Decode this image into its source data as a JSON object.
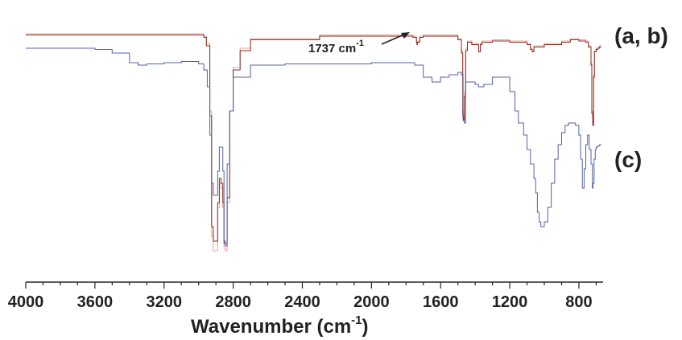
{
  "chart_data": {
    "type": "line",
    "xlabel_main": "Wavenumber (cm",
    "xlabel_sup": "-1",
    "xlabel_close": ")",
    "xlim": [
      4000,
      660
    ],
    "x_reversed": true,
    "ylim": [
      0,
      100
    ],
    "y_axis_shown": false,
    "x_ticks": [
      4000,
      3600,
      3200,
      2800,
      2400,
      2000,
      1600,
      1200,
      800
    ],
    "x_tick_labels": [
      "4000",
      "3600",
      "3200",
      "2800",
      "2400",
      "2000",
      "1600",
      "1200",
      "800"
    ],
    "curve_labels": {
      "ab": "(a, b)",
      "c": "(c)"
    },
    "annotation": {
      "text": "1737 cm",
      "sup": "-1",
      "target_x": 1737
    },
    "series": [
      {
        "key": "a",
        "color": "#e8a49c",
        "x": [
          4000,
          3400,
          3000,
          2970,
          2955,
          2935,
          2925,
          2915,
          2905,
          2890,
          2880,
          2870,
          2860,
          2853,
          2846,
          2835,
          2820,
          2800,
          2760,
          2700,
          2300,
          2000,
          1800,
          1760,
          1740,
          1737,
          1734,
          1720,
          1700,
          1600,
          1500,
          1480,
          1472,
          1466,
          1462,
          1455,
          1445,
          1420,
          1380,
          1370,
          1360,
          1300,
          1200,
          1100,
          1080,
          1070,
          1060,
          1000,
          900,
          850,
          800,
          760,
          745,
          730,
          725,
          720,
          715,
          710,
          700,
          690,
          680,
          670
        ],
        "y": [
          92,
          92,
          92,
          91,
          88,
          60,
          8,
          2,
          2,
          20,
          30,
          28,
          20,
          3,
          2,
          22,
          60,
          78,
          86,
          90,
          91.5,
          91.5,
          91.5,
          91,
          89,
          88,
          89,
          91,
          91.5,
          91.5,
          90,
          85,
          60,
          58,
          68,
          86,
          89,
          88,
          85,
          88,
          89,
          89.5,
          89,
          88,
          86,
          85,
          87,
          88,
          89,
          90,
          89.5,
          89,
          87,
          80,
          60,
          55,
          75,
          85,
          86,
          86.5,
          87,
          87
        ]
      },
      {
        "key": "b",
        "color": "#8a2b1f",
        "x": [
          4000,
          3400,
          3000,
          2970,
          2955,
          2935,
          2925,
          2915,
          2905,
          2890,
          2880,
          2870,
          2860,
          2853,
          2846,
          2835,
          2820,
          2800,
          2760,
          2700,
          2300,
          2000,
          1800,
          1760,
          1740,
          1737,
          1734,
          1720,
          1700,
          1600,
          1500,
          1480,
          1472,
          1466,
          1462,
          1455,
          1445,
          1420,
          1380,
          1370,
          1360,
          1300,
          1200,
          1100,
          1080,
          1070,
          1060,
          1000,
          900,
          850,
          800,
          760,
          745,
          730,
          725,
          720,
          715,
          710,
          700,
          690,
          680,
          670
        ],
        "y": [
          91.5,
          91.5,
          91.5,
          90.5,
          87,
          58,
          12,
          6,
          6,
          22,
          32,
          30,
          22,
          6,
          5,
          24,
          60,
          77,
          85,
          89.5,
          91,
          91,
          91,
          90.5,
          88.5,
          87.5,
          88.5,
          90.5,
          91,
          91,
          89.5,
          84,
          58,
          56,
          66,
          85,
          88.5,
          87.5,
          84.5,
          87.5,
          88.5,
          89,
          88.5,
          87.5,
          85.5,
          84.5,
          86.5,
          87.5,
          88.5,
          89.5,
          89,
          88.5,
          86.5,
          79,
          59,
          54,
          74,
          84.5,
          85.5,
          86,
          86.5,
          86.5
        ]
      },
      {
        "key": "c",
        "color": "#5560a8",
        "x": [
          4000,
          3700,
          3600,
          3500,
          3400,
          3350,
          3300,
          3200,
          3100,
          3000,
          2970,
          2950,
          2935,
          2925,
          2915,
          2905,
          2890,
          2880,
          2870,
          2860,
          2853,
          2846,
          2835,
          2820,
          2800,
          2700,
          2500,
          2300,
          2000,
          1800,
          1750,
          1700,
          1650,
          1600,
          1550,
          1500,
          1480,
          1470,
          1463,
          1455,
          1445,
          1400,
          1380,
          1350,
          1300,
          1250,
          1200,
          1170,
          1150,
          1120,
          1100,
          1080,
          1060,
          1050,
          1040,
          1030,
          1020,
          1000,
          980,
          960,
          940,
          920,
          900,
          880,
          860,
          840,
          820,
          800,
          790,
          780,
          770,
          760,
          750,
          740,
          730,
          722,
          718,
          712,
          705,
          700,
          690,
          680,
          670
        ],
        "y": [
          86,
          86,
          85.5,
          84,
          80,
          79,
          79.5,
          80,
          80.5,
          79.5,
          77,
          70,
          50,
          30,
          25,
          25,
          35,
          45,
          45,
          35,
          5,
          4,
          38,
          60,
          74,
          79,
          79.5,
          79.5,
          80,
          80,
          79,
          74,
          72,
          74,
          75,
          76,
          75,
          56,
          55,
          72,
          72,
          71,
          70,
          71,
          74,
          74,
          68,
          60,
          55,
          50,
          44,
          38,
          32,
          26,
          18,
          14,
          12,
          14,
          20,
          30,
          40,
          46,
          51,
          54,
          55,
          55,
          54,
          50,
          40,
          28,
          36,
          46,
          50,
          44,
          38,
          28,
          30,
          40,
          44,
          45,
          45.5,
          46,
          46
        ]
      }
    ]
  }
}
